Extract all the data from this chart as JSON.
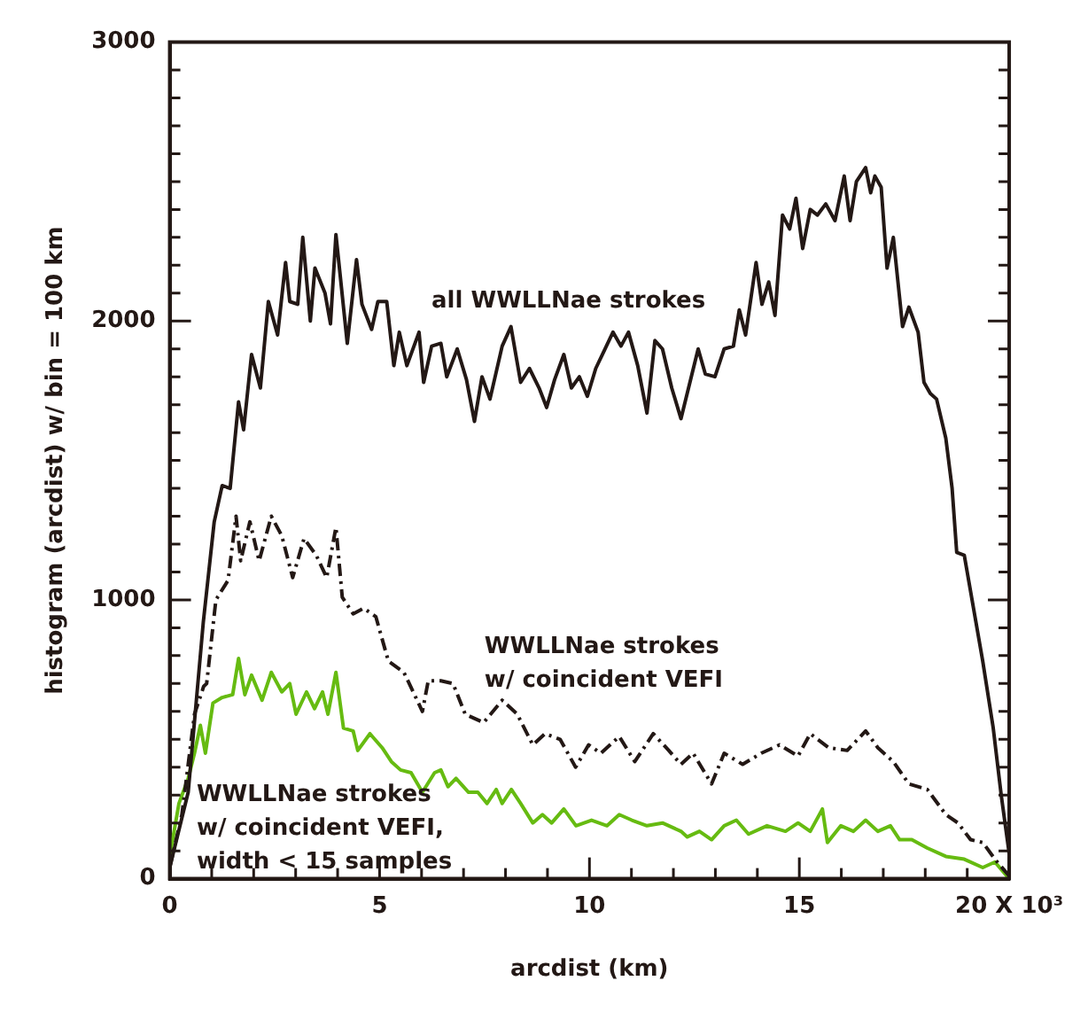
{
  "chart_data": {
    "type": "line",
    "xlabel": "arcdist (km)",
    "ylabel": "histogram (arcdist) w/ bin = 100 km",
    "xlim": [
      0,
      20
    ],
    "ylim": [
      0,
      3000
    ],
    "xticks": [
      0,
      {
        "value": 1,
        "label": null
      },
      {
        "value": 2,
        "label": null
      },
      {
        "value": 3,
        "label": null
      },
      {
        "value": 4,
        "label": null
      },
      5,
      {
        "value": 6,
        "label": null
      },
      {
        "value": 7,
        "label": null
      },
      {
        "value": 8,
        "label": null
      },
      {
        "value": 9,
        "label": null
      },
      10,
      {
        "value": 11,
        "label": null
      },
      {
        "value": 12,
        "label": null
      },
      {
        "value": 13,
        "label": null
      },
      {
        "value": 14,
        "label": null
      },
      15,
      {
        "value": 16,
        "label": null
      },
      {
        "value": 17,
        "label": null
      },
      {
        "value": 18,
        "label": null
      },
      {
        "value": 19,
        "label": null
      },
      {
        "value": 20,
        "label": "20 X 10³"
      }
    ],
    "yticks": [
      0,
      {
        "value": 100,
        "label": null
      },
      {
        "value": 200,
        "label": null
      },
      {
        "value": 300,
        "label": null
      },
      {
        "value": 400,
        "label": null
      },
      {
        "value": 500,
        "label": null
      },
      {
        "value": 600,
        "label": null
      },
      {
        "value": 700,
        "label": null
      },
      {
        "value": 800,
        "label": null
      },
      {
        "value": 900,
        "label": null
      },
      1000,
      {
        "value": 1100,
        "label": null
      },
      {
        "value": 1200,
        "label": null
      },
      {
        "value": 1300,
        "label": null
      },
      {
        "value": 1400,
        "label": null
      },
      {
        "value": 1500,
        "label": null
      },
      {
        "value": 1600,
        "label": null
      },
      {
        "value": 1700,
        "label": null
      },
      {
        "value": 1800,
        "label": null
      },
      {
        "value": 1900,
        "label": null
      },
      2000,
      {
        "value": 2100,
        "label": null
      },
      {
        "value": 2200,
        "label": null
      },
      {
        "value": 2300,
        "label": null
      },
      {
        "value": 2400,
        "label": null
      },
      {
        "value": 2500,
        "label": null
      },
      {
        "value": 2600,
        "label": null
      },
      {
        "value": 2700,
        "label": null
      },
      {
        "value": 2800,
        "label": null
      },
      {
        "value": 2900,
        "label": null
      },
      3000
    ],
    "grid": false,
    "legend": false,
    "marker": "none",
    "series": [
      {
        "name": "all WWLLNae strokes",
        "color": "#231815",
        "line_style": "solid",
        "x": [
          0,
          0.44,
          0.8,
          1.06,
          1.25,
          1.44,
          1.64,
          1.76,
          1.95,
          2.16,
          2.35,
          2.57,
          2.76,
          2.86,
          3.05,
          3.17,
          3.35,
          3.46,
          3.7,
          3.83,
          3.96,
          4.23,
          4.45,
          4.58,
          4.81,
          4.96,
          5.17,
          5.34,
          5.47,
          5.65,
          5.94,
          6.05,
          6.24,
          6.46,
          6.6,
          6.85,
          7.07,
          7.26,
          7.44,
          7.63,
          7.92,
          8.13,
          8.36,
          8.57,
          8.8,
          8.98,
          9.17,
          9.39,
          9.57,
          9.76,
          9.95,
          10.15,
          10.34,
          10.56,
          10.75,
          10.93,
          11.15,
          11.37,
          11.56,
          11.74,
          11.96,
          12.18,
          12.59,
          12.76,
          12.99,
          13.21,
          13.43,
          13.57,
          13.72,
          13.97,
          14.11,
          14.27,
          14.42,
          14.6,
          14.77,
          14.92,
          15.08,
          15.26,
          15.43,
          15.63,
          15.85,
          16.07,
          16.21,
          16.36,
          16.58,
          16.7,
          16.8,
          16.95,
          17.09,
          17.24,
          17.46,
          17.61,
          17.83,
          17.97,
          18.12,
          18.27,
          18.49,
          18.64,
          18.75,
          18.93,
          19.15,
          19.37,
          19.62,
          19.81,
          20
        ],
        "values": [
          40,
          310,
          920,
          1280,
          1410,
          1400,
          1710,
          1610,
          1880,
          1760,
          2070,
          1950,
          2210,
          2070,
          2060,
          2300,
          2000,
          2190,
          2100,
          1990,
          2310,
          1920,
          2220,
          2060,
          1970,
          2070,
          2070,
          1840,
          1960,
          1840,
          1960,
          1780,
          1910,
          1920,
          1800,
          1900,
          1790,
          1640,
          1800,
          1720,
          1910,
          1980,
          1780,
          1830,
          1760,
          1690,
          1790,
          1880,
          1760,
          1800,
          1730,
          1830,
          1890,
          1960,
          1910,
          1960,
          1840,
          1670,
          1930,
          1900,
          1760,
          1650,
          1900,
          1810,
          1800,
          1900,
          1910,
          2040,
          1950,
          2210,
          2060,
          2140,
          2020,
          2380,
          2330,
          2440,
          2260,
          2400,
          2380,
          2420,
          2360,
          2520,
          2360,
          2500,
          2550,
          2460,
          2520,
          2480,
          2190,
          2300,
          1980,
          2050,
          1960,
          1780,
          1740,
          1720,
          1580,
          1400,
          1170,
          1160,
          970,
          780,
          540,
          300,
          90
        ]
      },
      {
        "name": "WWLLNae strokes\nw/ coincident VEFI",
        "color": "#231815",
        "line_style": "dashed",
        "x": [
          0,
          0.29,
          0.59,
          0.81,
          0.88,
          1.1,
          1.39,
          1.58,
          1.69,
          1.91,
          2.13,
          2.42,
          2.67,
          2.93,
          3.2,
          3.49,
          3.74,
          3.96,
          4.11,
          4.37,
          4.62,
          4.91,
          5.21,
          5.58,
          6.02,
          6.16,
          6.46,
          6.75,
          7.04,
          7.48,
          7.92,
          8.28,
          8.65,
          8.94,
          9.3,
          9.67,
          9.98,
          10.27,
          10.71,
          11.08,
          11.52,
          11.89,
          12.18,
          12.47,
          12.91,
          13.21,
          13.65,
          14.09,
          14.53,
          14.97,
          15.26,
          15.7,
          16.14,
          16.58,
          16.87,
          17.24,
          17.61,
          18.05,
          18.49,
          18.78,
          19.08,
          19.37,
          19.66,
          20
        ],
        "values": [
          40,
          230,
          590,
          690,
          700,
          1000,
          1070,
          1300,
          1140,
          1280,
          1140,
          1300,
          1230,
          1080,
          1220,
          1160,
          1080,
          1260,
          1010,
          950,
          970,
          940,
          780,
          740,
          600,
          710,
          710,
          700,
          590,
          560,
          640,
          590,
          480,
          520,
          500,
          400,
          480,
          450,
          510,
          420,
          520,
          460,
          410,
          450,
          340,
          450,
          410,
          450,
          480,
          440,
          520,
          470,
          460,
          530,
          470,
          420,
          340,
          320,
          230,
          200,
          140,
          130,
          70,
          10
        ]
      },
      {
        "name": "WWLLNae strokes\nw/ coincident VEFI,\nwidth < 15 samples",
        "color": "#66bb11",
        "line_style": "solid",
        "x": [
          0,
          0.22,
          0.44,
          0.59,
          0.73,
          0.85,
          1.03,
          1.25,
          1.5,
          1.64,
          1.79,
          1.95,
          2.2,
          2.42,
          2.67,
          2.86,
          3.01,
          3.26,
          3.45,
          3.64,
          3.77,
          3.96,
          4.14,
          4.37,
          4.48,
          4.77,
          5.06,
          5.28,
          5.5,
          5.75,
          6.02,
          6.31,
          6.46,
          6.63,
          6.82,
          7.12,
          7.34,
          7.56,
          7.78,
          7.92,
          8.14,
          8.36,
          8.65,
          8.88,
          9.1,
          9.39,
          9.68,
          10.05,
          10.42,
          10.71,
          11.01,
          11.37,
          11.74,
          12.18,
          12.33,
          12.62,
          12.91,
          13.21,
          13.5,
          13.79,
          14.23,
          14.67,
          14.97,
          15.26,
          15.55,
          15.67,
          15.99,
          16.29,
          16.58,
          16.87,
          17.17,
          17.39,
          17.68,
          18.05,
          18.49,
          18.93,
          19.37,
          19.66,
          20
        ],
        "values": [
          80,
          270,
          360,
          450,
          550,
          450,
          630,
          650,
          660,
          790,
          660,
          730,
          640,
          740,
          670,
          700,
          590,
          670,
          610,
          670,
          590,
          740,
          540,
          530,
          460,
          520,
          470,
          420,
          390,
          380,
          310,
          380,
          390,
          330,
          360,
          310,
          310,
          270,
          320,
          270,
          320,
          270,
          200,
          230,
          200,
          250,
          190,
          210,
          190,
          230,
          210,
          190,
          200,
          170,
          150,
          170,
          140,
          190,
          210,
          160,
          190,
          170,
          200,
          170,
          250,
          130,
          190,
          170,
          210,
          170,
          190,
          140,
          140,
          110,
          80,
          70,
          40,
          60,
          0
        ]
      }
    ]
  }
}
